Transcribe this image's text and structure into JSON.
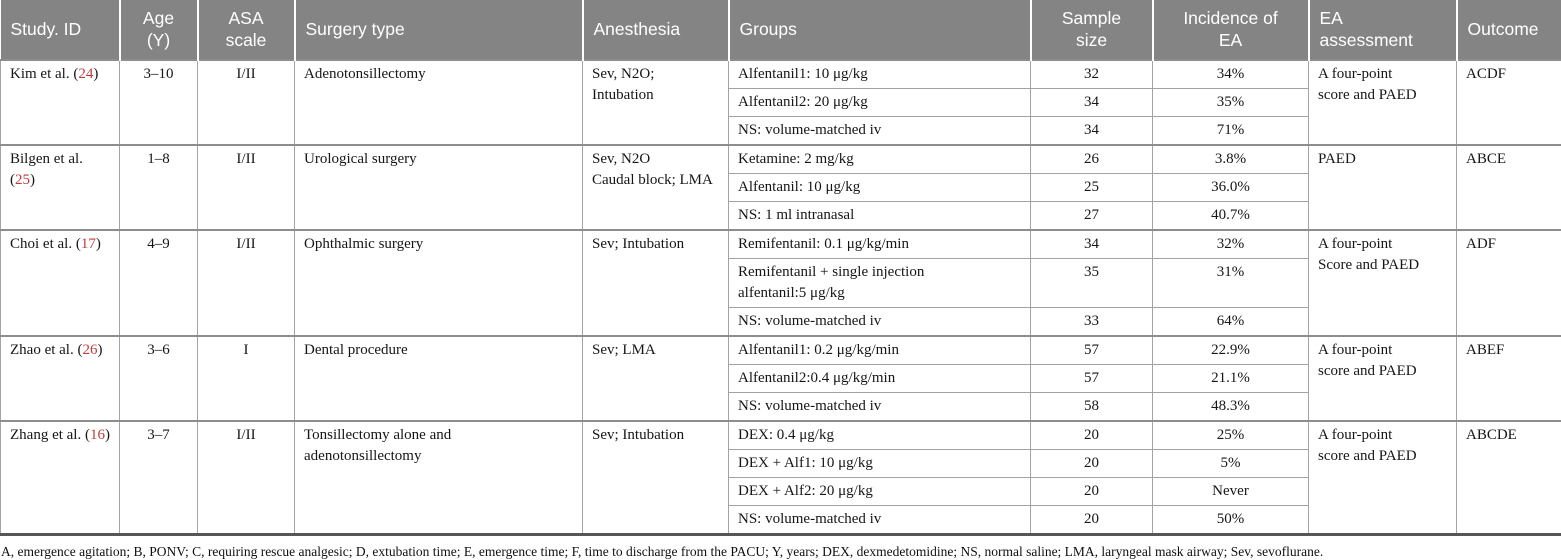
{
  "colors": {
    "header_bg": "#848484",
    "header_text": "#ffffff",
    "citation_red": "#c03a3a",
    "cell_border": "#a3a3a3",
    "bottom_rule": "#565656"
  },
  "table": {
    "columns": [
      {
        "label": "Study. ID"
      },
      {
        "label": "Age\n(Y)"
      },
      {
        "label": "ASA\nscale"
      },
      {
        "label": "Surgery type"
      },
      {
        "label": "Anesthesia"
      },
      {
        "label": "Groups"
      },
      {
        "label": "Sample\nsize"
      },
      {
        "label": "Incidence of\nEA"
      },
      {
        "label": "EA\nassessment"
      },
      {
        "label": "Outcome"
      }
    ],
    "rows": [
      {
        "study": {
          "pre": "Kim et al. (",
          "ref": "24",
          "post": ")"
        },
        "age": "3–10",
        "asa": "I/II",
        "surgery": "Adenotonsillectomy",
        "anesthesia": "Sev, N2O;\nIntubation",
        "groups": [
          {
            "name": "Alfentanil1: 10 μg/kg",
            "sample_size": "32",
            "incidence_of_ea": "34%"
          },
          {
            "name": "Alfentanil2: 20 μg/kg",
            "sample_size": "34",
            "incidence_of_ea": "35%"
          },
          {
            "name": "NS: volume-matched iv",
            "sample_size": "34",
            "incidence_of_ea": "71%"
          }
        ],
        "ea_assessment": "A four-point\nscore and PAED",
        "outcome": "ACDF"
      },
      {
        "study": {
          "pre": "Bilgen et al. (",
          "ref": "25",
          "post": ")"
        },
        "age": "1–8",
        "asa": "I/II",
        "surgery": "Urological surgery",
        "anesthesia": "Sev, N2O\nCaudal block; LMA",
        "groups": [
          {
            "name": "Ketamine: 2 mg/kg",
            "sample_size": "26",
            "incidence_of_ea": "3.8%"
          },
          {
            "name": "Alfentanil: 10 μg/kg",
            "sample_size": "25",
            "incidence_of_ea": "36.0%"
          },
          {
            "name": "NS: 1 ml intranasal",
            "sample_size": "27",
            "incidence_of_ea": "40.7%"
          }
        ],
        "ea_assessment": "PAED",
        "outcome": "ABCE"
      },
      {
        "study": {
          "pre": "Choi et al. (",
          "ref": "17",
          "post": ")"
        },
        "age": "4–9",
        "asa": "I/II",
        "surgery": "Ophthalmic surgery",
        "anesthesia": "Sev; Intubation",
        "groups": [
          {
            "name": "Remifentanil: 0.1 μg/kg/min",
            "sample_size": "34",
            "incidence_of_ea": "32%"
          },
          {
            "name": "Remifentanil + single injection\nalfentanil:5 μg/kg",
            "sample_size": "35",
            "incidence_of_ea": "31%"
          },
          {
            "name": "NS: volume-matched iv",
            "sample_size": "33",
            "incidence_of_ea": "64%"
          }
        ],
        "ea_assessment": "A four-point\nScore and PAED",
        "outcome": "ADF"
      },
      {
        "study": {
          "pre": "Zhao et al. (",
          "ref": "26",
          "post": ")"
        },
        "age": "3–6",
        "asa": "I",
        "surgery": "Dental procedure",
        "anesthesia": "Sev; LMA",
        "groups": [
          {
            "name": "Alfentanil1: 0.2 μg/kg/min",
            "sample_size": "57",
            "incidence_of_ea": "22.9%"
          },
          {
            "name": "Alfentanil2:0.4 μg/kg/min",
            "sample_size": "57",
            "incidence_of_ea": "21.1%"
          },
          {
            "name": "NS: volume-matched iv",
            "sample_size": "58",
            "incidence_of_ea": "48.3%"
          }
        ],
        "ea_assessment": "A four-point\nscore and PAED",
        "outcome": "ABEF"
      },
      {
        "study": {
          "pre": "Zhang et al. (",
          "ref": "16",
          "post": ")"
        },
        "age": "3–7",
        "asa": "I/II",
        "surgery": "Tonsillectomy alone and\nadenotonsillectomy",
        "anesthesia": "Sev; Intubation",
        "groups": [
          {
            "name": "DEX: 0.4 μg/kg",
            "sample_size": "20",
            "incidence_of_ea": "25%"
          },
          {
            "name": "DEX + Alf1: 10 μg/kg",
            "sample_size": "20",
            "incidence_of_ea": "5%"
          },
          {
            "name": "DEX + Alf2: 20 μg/kg",
            "sample_size": "20",
            "incidence_of_ea": "Never"
          },
          {
            "name": "NS: volume-matched iv",
            "sample_size": "20",
            "incidence_of_ea": "50%"
          }
        ],
        "ea_assessment": "A four-point\nscore and PAED",
        "outcome": "ABCDE"
      }
    ]
  },
  "footnote": "A, emergence agitation; B, PONV; C, requiring rescue analgesic; D, extubation time; E, emergence time; F, time to discharge from the PACU; Y, years; DEX, dexmedetomidine; NS, normal saline; LMA, laryngeal mask airway; Sev, sevoflurane."
}
